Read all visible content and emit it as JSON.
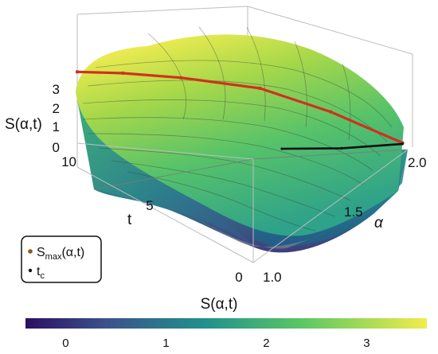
{
  "chart_data": {
    "type": "surface",
    "z_label": "S(α,t)",
    "alpha_label": "α",
    "t_label": "t",
    "z_ticks": [
      "0",
      "1",
      "2",
      "3"
    ],
    "t_ticks": [
      "0",
      "5",
      "10"
    ],
    "alpha_ticks": [
      "1.0",
      "1.5",
      "2.0"
    ],
    "ranges": {
      "alpha": [
        1.0,
        2.0
      ],
      "t": [
        0,
        10
      ],
      "z": [
        0,
        3.5
      ]
    },
    "series": [
      {
        "name": "S_max(α,t)",
        "label_main": "S",
        "label_sub": "max",
        "label_rest": "(α,t)",
        "color": "#d0311f",
        "points": [
          [
            1.0,
            10,
            3.45
          ],
          [
            1.25,
            9.6,
            3.3
          ],
          [
            1.5,
            8.5,
            3.05
          ],
          [
            1.75,
            6.2,
            2.6
          ],
          [
            1.9,
            3.5,
            1.6
          ],
          [
            2.0,
            0.3,
            0.3
          ]
        ]
      },
      {
        "name": "t_c",
        "label_main": "t",
        "label_sub": "c",
        "label_rest": "",
        "color": "#111111",
        "points": [
          [
            2.0,
            0.3,
            0.25
          ],
          [
            1.8,
            2.0,
            0.0
          ],
          [
            1.55,
            3.2,
            0.0
          ]
        ]
      }
    ],
    "colorbar": {
      "label": "S(α,t)",
      "ticks": [
        "0",
        "1",
        "2",
        "3"
      ],
      "range": [
        -0.4,
        3.6
      ]
    },
    "colormap": [
      "#440154",
      "#3b528b",
      "#21918c",
      "#5ec962",
      "#fde725"
    ],
    "legend_position": "bottom-left",
    "grid": false
  }
}
